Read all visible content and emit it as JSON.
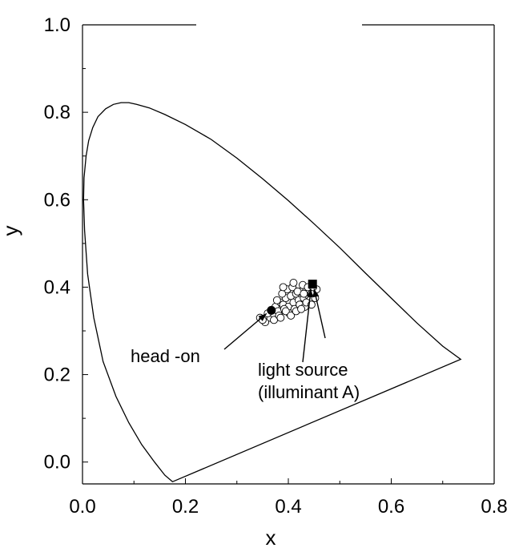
{
  "chart_data": {
    "type": "scatter",
    "title": "",
    "xlabel": "x",
    "ylabel": "y",
    "xlim": [
      0.0,
      0.8
    ],
    "ylim": [
      -0.05,
      1.0
    ],
    "xticks": [
      "0.0",
      "0.2",
      "0.4",
      "0.6",
      "0.8"
    ],
    "yticks": [
      "0.0",
      "0.2",
      "0.4",
      "0.6",
      "0.8",
      "1.0"
    ],
    "x_tick_values": [
      0.0,
      0.2,
      0.4,
      0.6,
      0.8
    ],
    "y_tick_values": [
      0.0,
      0.2,
      0.4,
      0.6,
      0.8,
      1.0
    ],
    "grid": false,
    "spectral_locus": {
      "x": [
        0.175,
        0.16,
        0.14,
        0.115,
        0.09,
        0.065,
        0.04,
        0.022,
        0.01,
        0.004,
        0.002,
        0.003,
        0.007,
        0.012,
        0.02,
        0.03,
        0.045,
        0.06,
        0.075,
        0.09,
        0.105,
        0.13,
        0.16,
        0.2,
        0.25,
        0.3,
        0.35,
        0.4,
        0.45,
        0.5,
        0.55,
        0.6,
        0.65,
        0.7,
        0.735
      ],
      "y": [
        -0.045,
        -0.03,
        0.0,
        0.04,
        0.09,
        0.15,
        0.23,
        0.33,
        0.43,
        0.53,
        0.6,
        0.65,
        0.7,
        0.735,
        0.765,
        0.79,
        0.808,
        0.818,
        0.822,
        0.822,
        0.818,
        0.81,
        0.795,
        0.772,
        0.738,
        0.695,
        0.648,
        0.598,
        0.545,
        0.49,
        0.432,
        0.375,
        0.318,
        0.265,
        0.235
      ]
    },
    "series": [
      {
        "name": "",
        "marker": "open-circle",
        "x": [
          0.355,
          0.365,
          0.37,
          0.375,
          0.38,
          0.385,
          0.39,
          0.395,
          0.4,
          0.405,
          0.41,
          0.415,
          0.42,
          0.425,
          0.43,
          0.435,
          0.44,
          0.445,
          0.45,
          0.455,
          0.372,
          0.382,
          0.392,
          0.402,
          0.412,
          0.422,
          0.432,
          0.442,
          0.452,
          0.36,
          0.378,
          0.388,
          0.398,
          0.408,
          0.418,
          0.428,
          0.438,
          0.448,
          0.385,
          0.395,
          0.405,
          0.415,
          0.425,
          0.435,
          0.445,
          0.345,
          0.35,
          0.39,
          0.41,
          0.43
        ],
        "y": [
          0.32,
          0.33,
          0.34,
          0.355,
          0.345,
          0.365,
          0.36,
          0.375,
          0.355,
          0.38,
          0.365,
          0.385,
          0.37,
          0.39,
          0.375,
          0.395,
          0.38,
          0.385,
          0.39,
          0.395,
          0.325,
          0.335,
          0.35,
          0.34,
          0.35,
          0.36,
          0.355,
          0.37,
          0.375,
          0.34,
          0.37,
          0.385,
          0.395,
          0.4,
          0.39,
          0.405,
          0.4,
          0.4,
          0.33,
          0.345,
          0.335,
          0.345,
          0.35,
          0.365,
          0.36,
          0.33,
          0.325,
          0.4,
          0.41,
          0.385
        ]
      }
    ],
    "highlight_points": [
      {
        "label": "head -on",
        "marker": "filled-circle",
        "x": 0.367,
        "y": 0.347
      },
      {
        "label": "light source\n(illuminant A)",
        "marker": "filled-square",
        "x": 0.447,
        "y": 0.407
      }
    ],
    "annotations": [
      {
        "text_lines": [
          "head -on"
        ],
        "target": "head-on point"
      },
      {
        "text_lines": [
          "light source",
          "(illuminant A)"
        ],
        "target": "light source point"
      }
    ]
  }
}
